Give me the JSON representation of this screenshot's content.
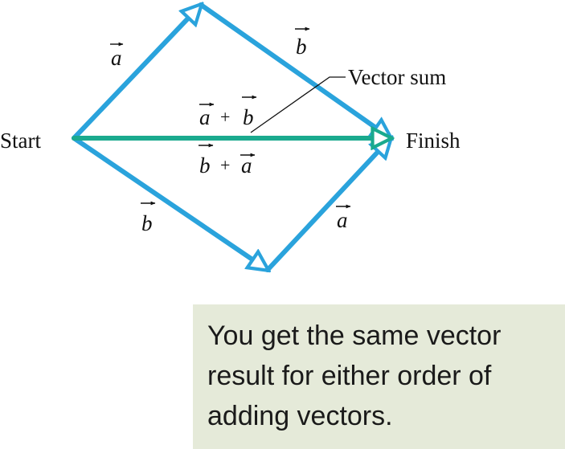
{
  "labels": {
    "start": "Start",
    "finish": "Finish",
    "vector_sum": "Vector sum",
    "sum_ab": {
      "first": "a",
      "op": "+",
      "second": "b"
    },
    "sum_ba": {
      "first": "b",
      "op": "+",
      "second": "a"
    },
    "upper_a": "a",
    "upper_b": "b",
    "lower_b": "b",
    "lower_a": "a"
  },
  "caption": "You get the same vector\nresult for either order of\nadding vectors.",
  "colors": {
    "vector_blue": "#2aa3dc",
    "sum_green": "#1aaa8e",
    "caption_bg": "#e5ead9",
    "text": "#111111"
  }
}
